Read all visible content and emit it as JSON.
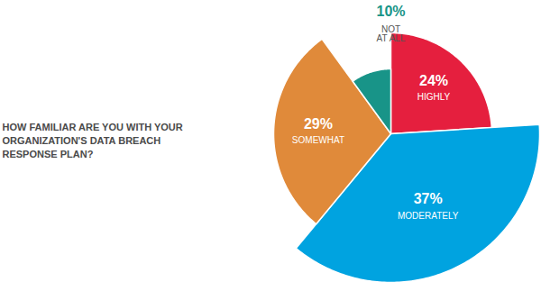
{
  "chart_data": {
    "type": "pie",
    "title": "HOW FAMILIAR ARE YOU WITH YOUR ORGANIZATION'S DATA BREACH RESPONSE PLAN?",
    "categories": [
      "HIGHLY",
      "MODERATELY",
      "SOMEWHAT",
      "NOT AT ALL"
    ],
    "values": [
      24,
      37,
      29,
      10
    ],
    "value_labels": [
      "24%",
      "37%",
      "29%",
      "10%"
    ],
    "colors": [
      "#e51f3e",
      "#00a3e0",
      "#e08a3a",
      "#189488"
    ],
    "data_labels": true
  }
}
